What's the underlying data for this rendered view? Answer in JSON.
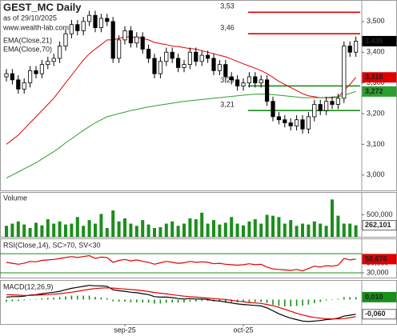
{
  "chart_data": [
    {
      "type": "candlestick",
      "title": "GEST_MC Daily",
      "subtitle": "as of 29/10/2025",
      "source": "www.wealth-lab.com",
      "categories": [
        null,
        null,
        null,
        null,
        null,
        null,
        null,
        null,
        null,
        null,
        null,
        null,
        null,
        null,
        null,
        null,
        null,
        null,
        null,
        null,
        "sep-25",
        null,
        null,
        null,
        null,
        null,
        null,
        null,
        null,
        null,
        null,
        null,
        null,
        null,
        null,
        null,
        null,
        null,
        null,
        null,
        "oct-25",
        null,
        null,
        null,
        null,
        null,
        null,
        null,
        null,
        null,
        null,
        null,
        null,
        null,
        null,
        null,
        null,
        null,
        null,
        null
      ],
      "open": [
        3.32,
        3.33,
        3.31,
        3.28,
        3.3,
        3.34,
        3.33,
        3.36,
        3.37,
        3.38,
        3.42,
        3.46,
        3.49,
        3.47,
        3.5,
        3.52,
        3.48,
        3.51,
        3.5,
        3.38,
        3.44,
        3.47,
        3.43,
        3.45,
        3.41,
        3.38,
        3.33,
        3.37,
        3.4,
        3.38,
        3.35,
        3.36,
        3.4,
        3.37,
        3.39,
        3.38,
        3.34,
        3.36,
        3.32,
        3.31,
        3.29,
        3.3,
        3.32,
        3.3,
        3.31,
        3.24,
        3.19,
        3.18,
        3.17,
        3.16,
        3.18,
        3.15,
        3.19,
        3.23,
        3.21,
        3.24,
        3.23,
        3.25,
        3.42,
        3.4
      ],
      "high": [
        3.345,
        3.345,
        3.325,
        3.315,
        3.355,
        3.355,
        3.375,
        3.385,
        3.395,
        3.435,
        3.475,
        3.505,
        3.505,
        3.515,
        3.535,
        3.535,
        3.525,
        3.525,
        3.515,
        3.455,
        3.485,
        3.485,
        3.465,
        3.465,
        3.425,
        3.395,
        3.385,
        3.415,
        3.415,
        3.395,
        3.375,
        3.415,
        3.415,
        3.405,
        3.405,
        3.395,
        3.375,
        3.375,
        3.335,
        3.325,
        3.315,
        3.335,
        3.335,
        3.325,
        3.325,
        3.255,
        3.205,
        3.195,
        3.185,
        3.195,
        3.195,
        3.205,
        3.245,
        3.245,
        3.255,
        3.255,
        3.265,
        3.435,
        3.435,
        3.451
      ],
      "low": [
        3.305,
        3.295,
        3.265,
        3.265,
        3.285,
        3.315,
        3.315,
        3.345,
        3.355,
        3.365,
        3.405,
        3.445,
        3.455,
        3.455,
        3.485,
        3.465,
        3.465,
        3.485,
        3.365,
        3.365,
        3.425,
        3.415,
        3.415,
        3.395,
        3.365,
        3.315,
        3.315,
        3.355,
        3.365,
        3.335,
        3.335,
        3.345,
        3.355,
        3.355,
        3.365,
        3.325,
        3.325,
        3.305,
        3.295,
        3.275,
        3.275,
        3.285,
        3.285,
        3.285,
        3.225,
        3.175,
        3.165,
        3.155,
        3.145,
        3.145,
        3.135,
        3.135,
        3.175,
        3.195,
        3.195,
        3.215,
        3.215,
        3.235,
        3.385,
        3.385
      ],
      "close": [
        3.33,
        3.31,
        3.28,
        3.3,
        3.34,
        3.33,
        3.36,
        3.37,
        3.38,
        3.42,
        3.46,
        3.49,
        3.47,
        3.5,
        3.52,
        3.48,
        3.51,
        3.5,
        3.38,
        3.44,
        3.47,
        3.43,
        3.45,
        3.41,
        3.38,
        3.33,
        3.37,
        3.4,
        3.38,
        3.35,
        3.36,
        3.4,
        3.37,
        3.39,
        3.38,
        3.34,
        3.36,
        3.32,
        3.31,
        3.29,
        3.3,
        3.32,
        3.3,
        3.31,
        3.24,
        3.19,
        3.18,
        3.17,
        3.16,
        3.18,
        3.15,
        3.19,
        3.23,
        3.21,
        3.24,
        3.23,
        3.25,
        3.42,
        3.4,
        3.436
      ],
      "last_label": "3,436",
      "series": [
        {
          "name": "EMA(Close,21)",
          "color": "#e00000",
          "last_label": "3,318",
          "values": [
            3.1,
            3.115,
            3.13,
            3.15,
            3.17,
            3.19,
            3.21,
            3.23,
            3.25,
            3.275,
            3.3,
            3.325,
            3.35,
            3.375,
            3.395,
            3.41,
            3.425,
            3.44,
            3.44,
            3.445,
            3.45,
            3.45,
            3.448,
            3.445,
            3.44,
            3.432,
            3.428,
            3.425,
            3.42,
            3.418,
            3.415,
            3.412,
            3.41,
            3.405,
            3.4,
            3.395,
            3.39,
            3.385,
            3.378,
            3.37,
            3.362,
            3.355,
            3.348,
            3.34,
            3.33,
            3.318,
            3.305,
            3.295,
            3.285,
            3.275,
            3.265,
            3.258,
            3.255,
            3.252,
            3.252,
            3.252,
            3.254,
            3.275,
            3.295,
            3.318
          ]
        },
        {
          "name": "EMA(Close,70)",
          "color": "#2e9e2e",
          "last_label": "3,272",
          "values": [
            2.99,
            3.0,
            3.01,
            3.02,
            3.03,
            3.04,
            3.052,
            3.064,
            3.076,
            3.09,
            3.105,
            3.118,
            3.132,
            3.145,
            3.158,
            3.17,
            3.18,
            3.19,
            3.195,
            3.2,
            3.205,
            3.21,
            3.214,
            3.218,
            3.222,
            3.225,
            3.228,
            3.231,
            3.234,
            3.237,
            3.24,
            3.242,
            3.244,
            3.246,
            3.248,
            3.25,
            3.252,
            3.254,
            3.256,
            3.258,
            3.26,
            3.262,
            3.263,
            3.264,
            3.263,
            3.262,
            3.26,
            3.258,
            3.256,
            3.254,
            3.252,
            3.252,
            3.252,
            3.252,
            3.253,
            3.254,
            3.255,
            3.26,
            3.266,
            3.272
          ]
        }
      ],
      "hlines": [
        {
          "value": 3.53,
          "label": "3,53",
          "color": "#e00000"
        },
        {
          "value": 3.46,
          "label": "3,46",
          "color": "#e00000"
        },
        {
          "value": 3.29,
          "label": "3,29",
          "color": "#1a8f1a"
        },
        {
          "value": 3.21,
          "label": "3,21",
          "color": "#1a8f1a"
        }
      ],
      "ylim": [
        2.95,
        3.57
      ],
      "yticks": [
        {
          "value": 3.0,
          "label": "3,000"
        },
        {
          "value": 3.1,
          "label": "3,100"
        },
        {
          "value": 3.2,
          "label": "3,200"
        },
        {
          "value": 3.3,
          "label": "3,300"
        },
        {
          "value": 3.4,
          "label": "3,400"
        },
        {
          "value": 3.5,
          "label": "3,500"
        }
      ]
    },
    {
      "type": "bar",
      "title": "Volume",
      "color": "#1a8f1a",
      "values": [
        250,
        300,
        350,
        280,
        200,
        320,
        260,
        400,
        300,
        350,
        280,
        300,
        450,
        250,
        380,
        300,
        520,
        200,
        600,
        350,
        420,
        300,
        250,
        380,
        280,
        200,
        220,
        300,
        350,
        250,
        300,
        420,
        400,
        550,
        300,
        380,
        280,
        320,
        450,
        300,
        260,
        350,
        400,
        300,
        500,
        480,
        450,
        300,
        380,
        250,
        300,
        280,
        350,
        300,
        250,
        850,
        480,
        300,
        300,
        262.101
      ],
      "last_label": "262,101",
      "ylim": [
        0,
        1020
      ],
      "yticks": [
        {
          "value": 500,
          "label": "500,000"
        }
      ]
    },
    {
      "type": "line",
      "title": "RSI(Close,14), SC>70, SV<30",
      "levels": [
        70,
        30
      ],
      "level_color": "#1a8f1a",
      "series": [
        {
          "color": "#e00000",
          "last_label": "58,676",
          "values": [
            52,
            50,
            48,
            50,
            54,
            53,
            56,
            57,
            58,
            60,
            62,
            64,
            62,
            64,
            66,
            60,
            63,
            62,
            52,
            56,
            58,
            55,
            57,
            54,
            52,
            48,
            51,
            54,
            52,
            50,
            51,
            54,
            52,
            53,
            52,
            49,
            50,
            48,
            47,
            46,
            47,
            49,
            47,
            48,
            42,
            38,
            37,
            36,
            35,
            37,
            34,
            39,
            44,
            42,
            45,
            44,
            46,
            60,
            57,
            58.676
          ]
        }
      ],
      "ylim": [
        20,
        102
      ],
      "yticks": [
        {
          "value": 30,
          "label": "30,000"
        },
        {
          "value": 50,
          "label": "50,000"
        }
      ]
    },
    {
      "type": "line",
      "title": "MACD(12,26,9)",
      "series": [
        {
          "color": "#000000",
          "last_label": "-0,060",
          "values": [
            0.01,
            0.012,
            0.012,
            0.014,
            0.018,
            0.02,
            0.024,
            0.027,
            0.03,
            0.034,
            0.04,
            0.046,
            0.05,
            0.054,
            0.058,
            0.056,
            0.056,
            0.054,
            0.04,
            0.036,
            0.034,
            0.03,
            0.028,
            0.024,
            0.02,
            0.012,
            0.01,
            0.01,
            0.008,
            0.004,
            0.002,
            0.004,
            0.002,
            0.002,
            0,
            -0.004,
            -0.006,
            -0.01,
            -0.014,
            -0.018,
            -0.02,
            -0.022,
            -0.024,
            -0.026,
            -0.034,
            -0.046,
            -0.058,
            -0.068,
            -0.076,
            -0.082,
            -0.088,
            -0.09,
            -0.088,
            -0.086,
            -0.082,
            -0.08,
            -0.076,
            -0.068,
            -0.064,
            -0.06
          ]
        },
        {
          "color": "#e00000",
          "values": [
            0.02,
            0.019,
            0.018,
            0.017,
            0.017,
            0.018,
            0.019,
            0.02,
            0.022,
            0.024,
            0.027,
            0.03,
            0.034,
            0.038,
            0.042,
            0.045,
            0.047,
            0.048,
            0.047,
            0.045,
            0.043,
            0.041,
            0.039,
            0.036,
            0.033,
            0.029,
            0.026,
            0.023,
            0.02,
            0.017,
            0.014,
            0.012,
            0.01,
            0.008,
            0.006,
            0.004,
            0.002,
            0,
            -0.003,
            -0.006,
            -0.009,
            -0.012,
            -0.014,
            -0.016,
            -0.02,
            -0.025,
            -0.032,
            -0.04,
            -0.048,
            -0.056,
            -0.063,
            -0.069,
            -0.073,
            -0.076,
            -0.078,
            -0.079,
            -0.079,
            -0.078,
            -0.074,
            -0.07
          ]
        }
      ],
      "histogram": {
        "color": "#1a8f1a",
        "last_label": "0,010",
        "values": [
          -0.01,
          -0.007,
          -0.006,
          -0.003,
          0.001,
          0.002,
          0.005,
          0.007,
          0.008,
          0.01,
          0.013,
          0.016,
          0.016,
          0.016,
          0.016,
          0.011,
          0.009,
          0.006,
          -0.007,
          -0.009,
          -0.009,
          -0.011,
          -0.011,
          -0.012,
          -0.013,
          -0.017,
          -0.016,
          -0.013,
          -0.012,
          -0.013,
          -0.012,
          -0.008,
          -0.008,
          -0.006,
          -0.006,
          -0.008,
          -0.008,
          -0.01,
          -0.011,
          -0.012,
          -0.011,
          -0.01,
          -0.01,
          -0.01,
          -0.014,
          -0.021,
          -0.026,
          -0.028,
          -0.028,
          -0.026,
          -0.025,
          -0.021,
          -0.015,
          -0.01,
          -0.004,
          -0.001,
          0.003,
          0.01,
          0.01,
          0.01
        ]
      },
      "ylim": [
        -0.1,
        0.08
      ]
    }
  ]
}
